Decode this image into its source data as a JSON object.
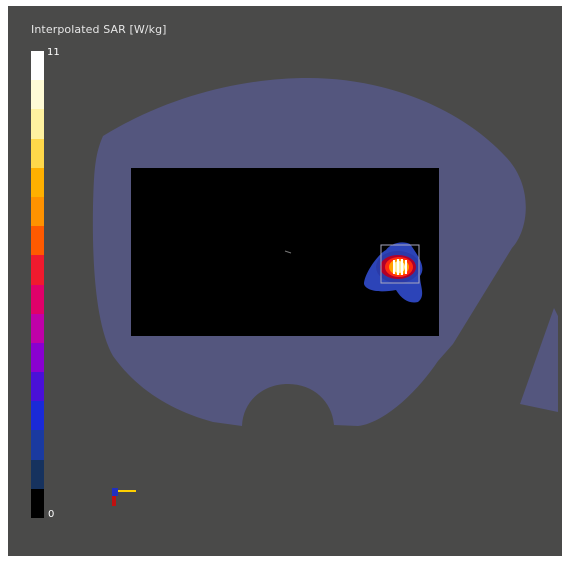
{
  "colorbar": {
    "title": "Interpolated SAR [W/kg]",
    "max_label": "11",
    "min_label": "0",
    "max_value": 11,
    "min_value": 0,
    "colors_top_to_bottom": [
      "#ffffff",
      "#fffbd6",
      "#fff2a0",
      "#ffd84a",
      "#ffb000",
      "#ff9200",
      "#ff5a00",
      "#f01a2e",
      "#e0006a",
      "#c000a8",
      "#8a00d0",
      "#4a10d8",
      "#1a2ad8",
      "#1a3aa0",
      "#16325e",
      "#000000"
    ]
  },
  "scene": {
    "background_color": "#4a4a49",
    "phantom_color": "#54567e",
    "slice_plane_color": "#000000",
    "hotspot_colors": [
      "#3a44c0",
      "#ff2020",
      "#ffb000",
      "#ffffff"
    ]
  }
}
